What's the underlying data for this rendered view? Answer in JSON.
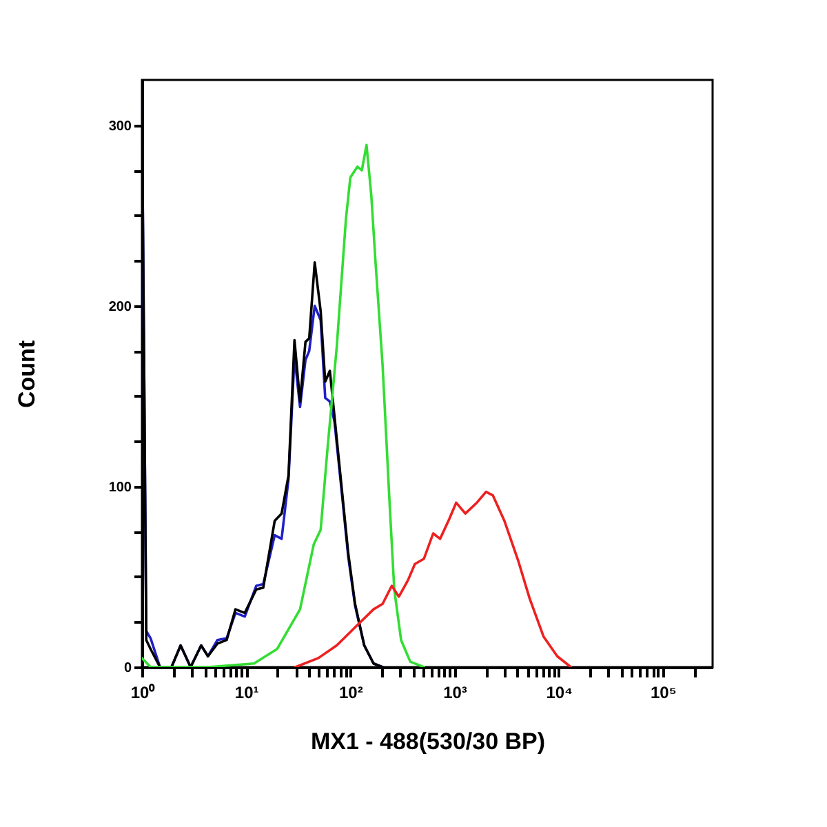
{
  "chart_data": {
    "type": "line",
    "xlabel": "MX1 - 488(530/30 BP)",
    "ylabel": "Count",
    "log": "x",
    "grid": false,
    "marker": "none",
    "line_style": "solid",
    "xlim": [
      1,
      300000
    ],
    "ylim": [
      0,
      325
    ],
    "xticks": [
      {
        "value": 1,
        "label": "10⁰"
      },
      {
        "value": 2,
        "label": null
      },
      {
        "value": 3,
        "label": null
      },
      {
        "value": 4,
        "label": null
      },
      {
        "value": 5,
        "label": null
      },
      {
        "value": 6,
        "label": null
      },
      {
        "value": 7,
        "label": null
      },
      {
        "value": 8,
        "label": null
      },
      {
        "value": 9,
        "label": null
      },
      {
        "value": 10,
        "label": "10¹"
      },
      {
        "value": 20,
        "label": null
      },
      {
        "value": 30,
        "label": null
      },
      {
        "value": 40,
        "label": null
      },
      {
        "value": 50,
        "label": null
      },
      {
        "value": 60,
        "label": null
      },
      {
        "value": 70,
        "label": null
      },
      {
        "value": 80,
        "label": null
      },
      {
        "value": 90,
        "label": null
      },
      {
        "value": 100,
        "label": "10²"
      },
      {
        "value": 200,
        "label": null
      },
      {
        "value": 300,
        "label": null
      },
      {
        "value": 400,
        "label": null
      },
      {
        "value": 500,
        "label": null
      },
      {
        "value": 600,
        "label": null
      },
      {
        "value": 700,
        "label": null
      },
      {
        "value": 800,
        "label": null
      },
      {
        "value": 900,
        "label": null
      },
      {
        "value": 1000,
        "label": "10³"
      },
      {
        "value": 2000,
        "label": null
      },
      {
        "value": 3000,
        "label": null
      },
      {
        "value": 4000,
        "label": null
      },
      {
        "value": 5000,
        "label": null
      },
      {
        "value": 6000,
        "label": null
      },
      {
        "value": 7000,
        "label": null
      },
      {
        "value": 8000,
        "label": null
      },
      {
        "value": 9000,
        "label": null
      },
      {
        "value": 10000,
        "label": "10⁴"
      },
      {
        "value": 20000,
        "label": null
      },
      {
        "value": 30000,
        "label": null
      },
      {
        "value": 40000,
        "label": null
      },
      {
        "value": 50000,
        "label": null
      },
      {
        "value": 60000,
        "label": null
      },
      {
        "value": 70000,
        "label": null
      },
      {
        "value": 80000,
        "label": null
      },
      {
        "value": 90000,
        "label": null
      },
      {
        "value": 100000,
        "label": "10⁵"
      },
      {
        "value": 200000,
        "label": null
      }
    ],
    "yticks": [
      0,
      {
        "value": 25,
        "label": null
      },
      {
        "value": 50,
        "label": null
      },
      {
        "value": 75,
        "label": null
      },
      100,
      {
        "value": 125,
        "label": null
      },
      {
        "value": 150,
        "label": null
      },
      {
        "value": 175,
        "label": null
      },
      200,
      {
        "value": 225,
        "label": null
      },
      {
        "value": 250,
        "label": null
      },
      {
        "value": 275,
        "label": null
      },
      300
    ],
    "series": [
      {
        "color": "#2020c8",
        "x": [
          1,
          1.1,
          1.21,
          1.49,
          1.92,
          2.35,
          2.93,
          3.7,
          4.3,
          5.3,
          6.5,
          7.9,
          9.7,
          12.5,
          14.6,
          18.8,
          21.9,
          25.5,
          29.1,
          32.9,
          37.1,
          40.3,
          45.5,
          51.9,
          57.4,
          63.6,
          70.4,
          82,
          95.5,
          111,
          136,
          167,
          204
        ],
        "values": [
          313,
          20,
          16,
          0,
          0,
          12,
          0,
          12,
          6,
          15,
          16,
          30,
          28,
          45,
          46,
          73,
          71,
          104,
          172,
          144,
          170,
          175,
          200,
          192,
          149,
          147,
          136,
          99,
          61,
          34,
          12,
          2,
          0
        ]
      },
      {
        "color": "#000000",
        "x": [
          1,
          1.1,
          1.21,
          1.49,
          1.92,
          2.35,
          2.93,
          3.7,
          4.3,
          5.3,
          6.5,
          7.9,
          9.7,
          12.5,
          14.6,
          18.8,
          21.9,
          25.5,
          29.1,
          32.9,
          37.1,
          40.3,
          45.5,
          51.9,
          57.4,
          63.6,
          70.4,
          82,
          95.5,
          111,
          136,
          167,
          204
        ],
        "values": [
          313,
          15,
          10,
          0,
          0,
          12,
          0,
          12,
          6,
          13,
          15,
          32,
          30,
          43,
          44,
          81,
          85,
          106,
          181,
          147,
          180,
          182,
          224,
          197,
          158,
          164,
          139,
          101,
          63,
          35,
          12,
          2,
          0
        ]
      },
      {
        "color": "#33dd33",
        "x": [
          1,
          1.21,
          4.3,
          11.9,
          19.8,
          32.9,
          44.6,
          51.9,
          60.4,
          74,
          90.7,
          100,
          117,
          129,
          143,
          159,
          175,
          204,
          238,
          264,
          307,
          376,
          509
        ],
        "values": [
          5,
          0,
          0,
          2,
          10,
          32,
          68,
          76,
          121,
          177,
          248,
          271,
          277,
          275,
          289,
          261,
          223,
          167,
          91,
          43,
          15,
          3,
          0
        ]
      },
      {
        "color": "#ee2020",
        "x": [
          29.7,
          49.3,
          74,
          111,
          167,
          204,
          250,
          292,
          357,
          416,
          509,
          624,
          727,
          891,
          1037,
          1270,
          1637,
          2006,
          2337,
          3010,
          4080,
          5260,
          7140,
          9680,
          13100
        ],
        "values": [
          0,
          5,
          12,
          22,
          32,
          35,
          45,
          39,
          48,
          57,
          60,
          74,
          71,
          82,
          91,
          85,
          91,
          97,
          95,
          81,
          59,
          38,
          17,
          6,
          0
        ]
      }
    ]
  }
}
